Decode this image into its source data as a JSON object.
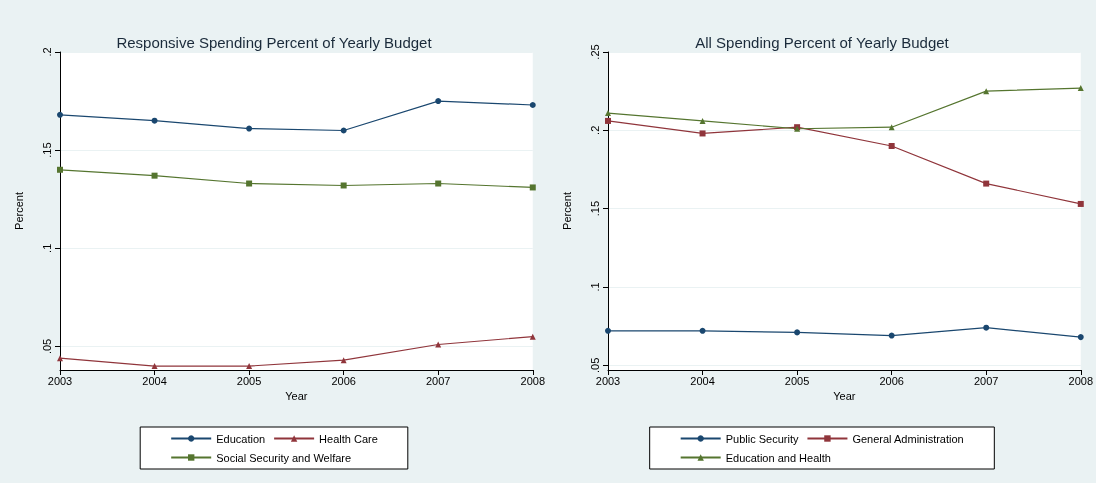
{
  "chart_data": [
    {
      "type": "line",
      "title": "Responsive Spending Percent of Yearly Budget",
      "xlabel": "Year",
      "ylabel": "Percent",
      "x": [
        2003,
        2004,
        2005,
        2006,
        2007,
        2008
      ],
      "xlim": [
        2003,
        2008
      ],
      "xticks": [
        2003,
        2004,
        2005,
        2006,
        2007,
        2008
      ],
      "ylim": [
        0.038,
        0.2
      ],
      "yticks": [
        {
          "value": 0.05,
          "label": ".05"
        },
        {
          "value": 0.1,
          "label": ".1"
        },
        {
          "value": 0.15,
          "label": ".15"
        },
        {
          "value": 0.2,
          "label": ".2"
        }
      ],
      "grid": "y",
      "legend": "bottom",
      "series": [
        {
          "name": "Education",
          "color": "#1a476f",
          "marker": "circle",
          "values": [
            0.168,
            0.165,
            0.161,
            0.16,
            0.175,
            0.173
          ]
        },
        {
          "name": "Health Care",
          "color": "#90353b",
          "marker": "triangle",
          "values": [
            0.044,
            0.04,
            0.04,
            0.043,
            0.051,
            0.055
          ]
        },
        {
          "name": "Social Security and Welfare",
          "color": "#55752f",
          "marker": "square",
          "values": [
            0.14,
            0.137,
            0.133,
            0.132,
            0.133,
            0.131
          ]
        }
      ]
    },
    {
      "type": "line",
      "title": "All Spending Percent of Yearly Budget",
      "xlabel": "Year",
      "ylabel": "Percent",
      "x": [
        2003,
        2004,
        2005,
        2006,
        2007,
        2008
      ],
      "xlim": [
        2003,
        2008
      ],
      "xticks": [
        2003,
        2004,
        2005,
        2006,
        2007,
        2008
      ],
      "ylim": [
        0.047,
        0.25
      ],
      "yticks": [
        {
          "value": 0.05,
          "label": ".05"
        },
        {
          "value": 0.1,
          "label": ".1"
        },
        {
          "value": 0.15,
          "label": ".15"
        },
        {
          "value": 0.2,
          "label": ".2"
        },
        {
          "value": 0.25,
          "label": ".25"
        }
      ],
      "grid": "y",
      "legend": "bottom",
      "series": [
        {
          "name": "Public Security",
          "color": "#1a476f",
          "marker": "circle",
          "values": [
            0.072,
            0.072,
            0.071,
            0.069,
            0.074,
            0.068
          ]
        },
        {
          "name": "General Administration",
          "color": "#90353b",
          "marker": "square",
          "values": [
            0.206,
            0.198,
            0.202,
            0.19,
            0.166,
            0.153
          ]
        },
        {
          "name": "Education and Health",
          "color": "#55752f",
          "marker": "triangle",
          "values": [
            0.211,
            0.206,
            0.201,
            0.202,
            0.225,
            0.227
          ]
        }
      ]
    }
  ]
}
